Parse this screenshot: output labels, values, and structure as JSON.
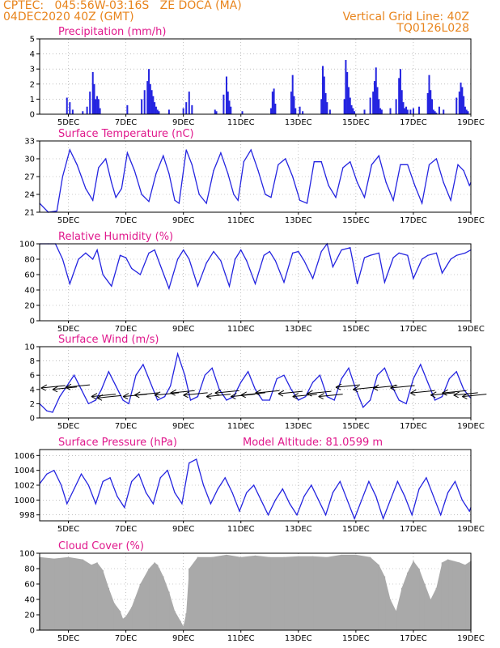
{
  "header": {
    "left_line1": "CPTEC:   045:56W-03:16S   ZE DOCA (MA)",
    "left_line2": "04DEC2020 40Z (GMT)",
    "right_line1": "Vertical Grid Line: 40Z",
    "right_line2": "TQ0126L028"
  },
  "colors": {
    "line": "#2424e0",
    "bar": "#2424e0",
    "cloud": "#a9a9a9",
    "title": "#e0188c",
    "header": "#e8841c"
  },
  "x_axis": {
    "start_day": 4,
    "end_day": 19,
    "tick_days": [
      5,
      7,
      9,
      11,
      13,
      15,
      17,
      19
    ],
    "tick_labels": [
      "5DEC",
      "7DEC",
      "9DEC",
      "11DEC",
      "13DEC",
      "15DEC",
      "17DEC",
      "19DEC"
    ]
  },
  "chart_data": [
    {
      "id": "precip",
      "type": "bar",
      "title": "Precipitation (mm/h)",
      "ylim": [
        0,
        5
      ],
      "yticks": [
        0,
        1,
        2,
        3,
        4,
        5
      ],
      "x": [
        4.95,
        5.05,
        5.15,
        5.5,
        5.65,
        5.75,
        5.85,
        5.9,
        5.95,
        6.0,
        6.05,
        6.1,
        7.05,
        7.55,
        7.65,
        7.75,
        7.8,
        7.85,
        7.9,
        7.95,
        8.0,
        8.05,
        8.1,
        8.15,
        8.5,
        9.0,
        9.1,
        9.2,
        9.3,
        10.1,
        10.15,
        10.4,
        10.5,
        10.55,
        10.6,
        10.65,
        11.05,
        12.05,
        12.1,
        12.15,
        12.2,
        12.75,
        12.8,
        12.85,
        12.9,
        13.05,
        13.15,
        13.8,
        13.85,
        13.9,
        13.95,
        14.0,
        14.1,
        14.6,
        14.65,
        14.7,
        14.75,
        14.8,
        14.85,
        14.9,
        14.95,
        15.3,
        15.5,
        15.6,
        15.65,
        15.7,
        15.75,
        15.8,
        15.85,
        15.9,
        16.2,
        16.4,
        16.5,
        16.55,
        16.6,
        16.65,
        16.7,
        16.75,
        16.8,
        16.9,
        17.0,
        17.2,
        17.5,
        17.55,
        17.6,
        17.65,
        17.7,
        17.75,
        17.8,
        17.9,
        18.05,
        18.5,
        18.6,
        18.65,
        18.7,
        18.75,
        18.8,
        18.85,
        18.9
      ],
      "values": [
        1.1,
        0.8,
        0.3,
        0.2,
        0.5,
        1.5,
        2.8,
        2.0,
        1.0,
        1.2,
        1.0,
        0.4,
        0.6,
        1.0,
        1.6,
        2.2,
        3.0,
        2.0,
        1.6,
        1.2,
        0.8,
        0.5,
        0.3,
        0.2,
        0.3,
        0.4,
        0.8,
        1.5,
        0.6,
        0.3,
        0.2,
        1.3,
        2.5,
        1.5,
        0.9,
        0.5,
        0.2,
        0.4,
        1.5,
        1.7,
        0.7,
        1.5,
        2.6,
        1.2,
        0.4,
        0.5,
        0.2,
        1.0,
        3.2,
        2.5,
        1.4,
        0.8,
        0.3,
        1.0,
        3.6,
        2.8,
        1.8,
        1.1,
        0.6,
        0.4,
        0.2,
        0.3,
        1.1,
        1.5,
        2.2,
        3.1,
        1.8,
        1.0,
        0.4,
        0.3,
        0.4,
        1.0,
        2.4,
        3.0,
        1.6,
        0.8,
        0.4,
        0.5,
        0.3,
        0.3,
        0.4,
        0.5,
        1.4,
        2.6,
        1.6,
        1.0,
        0.3,
        0.2,
        0.1,
        0.5,
        0.3,
        1.1,
        1.5,
        2.1,
        1.8,
        1.2,
        0.5,
        0.3,
        0.2
      ]
    },
    {
      "id": "temp",
      "type": "line",
      "title": "Surface Temperature (nC)",
      "ylim": [
        21,
        33
      ],
      "yticks": [
        21,
        24,
        27,
        30,
        33
      ],
      "x": [
        4.0,
        4.3,
        4.6,
        4.8,
        5.05,
        5.3,
        5.6,
        5.85,
        6.05,
        6.3,
        6.5,
        6.65,
        6.85,
        7.05,
        7.3,
        7.55,
        7.8,
        8.05,
        8.3,
        8.5,
        8.7,
        8.85,
        9.1,
        9.3,
        9.55,
        9.8,
        10.05,
        10.3,
        10.55,
        10.75,
        10.9,
        11.1,
        11.35,
        11.6,
        11.85,
        12.05,
        12.3,
        12.55,
        12.8,
        13.05,
        13.3,
        13.55,
        13.8,
        14.05,
        14.3,
        14.55,
        14.8,
        15.05,
        15.3,
        15.55,
        15.8,
        16.05,
        16.3,
        16.55,
        16.8,
        17.05,
        17.3,
        17.55,
        17.8,
        18.05,
        18.3,
        18.55,
        18.75,
        18.95,
        19.0
      ],
      "values": [
        22.5,
        21.0,
        21.2,
        27.0,
        31.5,
        29.0,
        25.0,
        23.0,
        28.5,
        30.0,
        26.0,
        23.5,
        25.0,
        31.0,
        28.0,
        24.0,
        22.8,
        27.5,
        30.5,
        27.5,
        23.0,
        22.5,
        31.5,
        29.0,
        24.0,
        22.5,
        28.0,
        31.0,
        27.5,
        24.0,
        23.0,
        29.5,
        31.5,
        28.0,
        24.0,
        23.5,
        29.0,
        30.0,
        27.0,
        23.0,
        22.5,
        29.5,
        29.5,
        25.5,
        23.5,
        28.5,
        29.5,
        26.0,
        23.5,
        29.0,
        30.5,
        26.0,
        23.0,
        29.0,
        29.0,
        25.5,
        22.5,
        29.0,
        30.0,
        26.0,
        23.0,
        29.0,
        28.0,
        25.5,
        26.0
      ]
    },
    {
      "id": "rh",
      "type": "line",
      "title": "Relative Humidity (%)",
      "ylim": [
        0,
        100
      ],
      "yticks": [
        0,
        20,
        40,
        60,
        80,
        100
      ],
      "x": [
        4.0,
        4.3,
        4.55,
        4.8,
        5.05,
        5.35,
        5.6,
        5.85,
        6.0,
        6.2,
        6.5,
        6.8,
        7.0,
        7.2,
        7.5,
        7.8,
        8.0,
        8.2,
        8.5,
        8.8,
        9.0,
        9.2,
        9.5,
        9.8,
        10.05,
        10.3,
        10.6,
        10.8,
        11.0,
        11.2,
        11.5,
        11.8,
        12.0,
        12.2,
        12.5,
        12.8,
        13.0,
        13.2,
        13.5,
        13.8,
        14.0,
        14.2,
        14.5,
        14.8,
        15.05,
        15.3,
        15.5,
        15.8,
        16.0,
        16.3,
        16.5,
        16.8,
        17.0,
        17.3,
        17.5,
        17.8,
        18.0,
        18.3,
        18.5,
        18.8,
        19.0
      ],
      "values": [
        100,
        100,
        100,
        80,
        48,
        80,
        88,
        80,
        92,
        60,
        45,
        85,
        82,
        68,
        60,
        88,
        92,
        72,
        42,
        80,
        92,
        80,
        45,
        75,
        90,
        78,
        45,
        80,
        92,
        78,
        48,
        85,
        90,
        78,
        50,
        88,
        90,
        78,
        55,
        90,
        100,
        70,
        92,
        95,
        48,
        82,
        85,
        88,
        50,
        82,
        88,
        85,
        55,
        80,
        85,
        88,
        62,
        80,
        85,
        88,
        92
      ]
    },
    {
      "id": "wind",
      "type": "line",
      "title": "Surface Wind (m/s)",
      "ylim": [
        0,
        10
      ],
      "yticks": [
        0,
        2,
        4,
        6,
        8,
        10
      ],
      "x": [
        4.0,
        4.25,
        4.45,
        4.7,
        4.95,
        5.2,
        5.45,
        5.7,
        5.95,
        6.15,
        6.4,
        6.65,
        6.9,
        7.1,
        7.35,
        7.6,
        7.85,
        8.1,
        8.35,
        8.55,
        8.8,
        9.05,
        9.25,
        9.5,
        9.75,
        10.0,
        10.25,
        10.5,
        10.75,
        11.0,
        11.25,
        11.5,
        11.75,
        12.0,
        12.25,
        12.5,
        12.75,
        13.0,
        13.25,
        13.5,
        13.75,
        14.0,
        14.25,
        14.5,
        14.75,
        15.0,
        15.25,
        15.5,
        15.75,
        16.0,
        16.25,
        16.5,
        16.75,
        17.0,
        17.25,
        17.5,
        17.75,
        18.0,
        18.25,
        18.5,
        18.75,
        18.95,
        19.0
      ],
      "values": [
        2.0,
        1.0,
        0.8,
        3.0,
        4.5,
        6.0,
        4.0,
        2.0,
        2.5,
        4.0,
        6.5,
        4.5,
        2.5,
        2.0,
        6.0,
        7.5,
        5.0,
        2.5,
        3.0,
        4.5,
        9.0,
        6.0,
        2.5,
        3.0,
        6.0,
        7.0,
        4.0,
        2.5,
        3.0,
        5.0,
        6.5,
        4.0,
        2.5,
        2.5,
        5.5,
        6.0,
        4.0,
        2.5,
        3.0,
        5.0,
        6.0,
        3.0,
        2.5,
        5.5,
        7.0,
        4.0,
        1.5,
        2.5,
        6.0,
        7.0,
        4.5,
        2.5,
        2.0,
        5.5,
        7.5,
        5.0,
        2.5,
        3.0,
        5.5,
        6.5,
        4.0,
        3.0,
        2.8
      ],
      "arrows_x": [
        4.05,
        4.45,
        4.9,
        5.8,
        6.0,
        6.9,
        7.3,
        8.0,
        8.55,
        9.0,
        9.8,
        10.1,
        10.65,
        11.0,
        11.5,
        12.3,
        12.8,
        13.3,
        13.7,
        14.3,
        14.9,
        15.6,
        16.2,
        16.9,
        17.6,
        18.0,
        18.4,
        18.7
      ],
      "arrows_y": [
        4.2,
        4.0,
        4.3,
        3.0,
        2.8,
        3.0,
        3.2,
        3.2,
        3.5,
        3.2,
        3.0,
        3.5,
        3.0,
        3.2,
        3.5,
        3.4,
        3.0,
        3.4,
        3.0,
        4.3,
        4.0,
        4.2,
        4.2,
        3.5,
        3.2,
        3.5,
        3.2,
        3.0
      ]
    },
    {
      "id": "pressure",
      "type": "line",
      "title": "Surface Pressure (hPa)",
      "subtitle": "Model Altitude: 81.0599 m",
      "ylim": [
        997.2,
        1006.8
      ],
      "yticks": [
        998,
        1000,
        1002,
        1004,
        1006
      ],
      "x": [
        4.0,
        4.25,
        4.5,
        4.75,
        4.95,
        5.2,
        5.45,
        5.7,
        5.95,
        6.2,
        6.45,
        6.7,
        6.95,
        7.2,
        7.45,
        7.7,
        7.95,
        8.2,
        8.45,
        8.7,
        8.95,
        9.2,
        9.45,
        9.7,
        9.95,
        10.2,
        10.45,
        10.7,
        10.95,
        11.2,
        11.45,
        11.7,
        11.95,
        12.2,
        12.45,
        12.7,
        12.95,
        13.2,
        13.45,
        13.7,
        13.95,
        14.2,
        14.45,
        14.7,
        14.95,
        15.2,
        15.45,
        15.7,
        15.95,
        16.2,
        16.45,
        16.7,
        16.95,
        17.2,
        17.45,
        17.7,
        17.95,
        18.2,
        18.45,
        18.7,
        18.95,
        19.0
      ],
      "values": [
        1002.2,
        1003.5,
        1004.0,
        1002.0,
        999.5,
        1001.5,
        1003.5,
        1002.0,
        999.5,
        1002.5,
        1003.0,
        1000.5,
        999.0,
        1002.5,
        1003.5,
        1001.0,
        999.5,
        1003.0,
        1004.0,
        1001.0,
        999.5,
        1005.0,
        1005.5,
        1002.0,
        999.5,
        1001.5,
        1003.0,
        1001.0,
        998.5,
        1001.0,
        1002.0,
        1000.0,
        998.0,
        1000.0,
        1001.5,
        999.5,
        998.0,
        1000.5,
        1002.0,
        1000.0,
        998.0,
        1001.0,
        1002.5,
        1000.0,
        997.5,
        1000.0,
        1002.5,
        1000.5,
        997.5,
        1000.0,
        1002.5,
        1000.5,
        998.0,
        1001.5,
        1003.0,
        1000.5,
        998.0,
        1001.0,
        1002.5,
        1000.0,
        998.5,
        999.0
      ]
    },
    {
      "id": "cloud",
      "type": "bar",
      "title": "Cloud Cover (%)",
      "ylim": [
        0,
        100
      ],
      "yticks": [
        0,
        20,
        40,
        60,
        80,
        100
      ],
      "x": [
        4.0,
        4.5,
        5.0,
        5.5,
        5.8,
        6.0,
        6.2,
        6.4,
        6.6,
        6.8,
        6.9,
        7.0,
        7.2,
        7.5,
        7.8,
        8.0,
        8.1,
        8.3,
        8.5,
        8.7,
        8.9,
        9.0,
        9.1,
        9.2,
        9.5,
        10.0,
        10.5,
        11.0,
        11.5,
        12.0,
        12.5,
        13.0,
        13.5,
        14.0,
        14.5,
        15.0,
        15.5,
        15.8,
        16.0,
        16.2,
        16.4,
        16.6,
        16.8,
        17.0,
        17.2,
        17.4,
        17.6,
        17.8,
        18.0,
        18.2,
        18.4,
        18.6,
        18.8,
        19.0
      ],
      "values": [
        95,
        93,
        95,
        92,
        85,
        88,
        78,
        55,
        35,
        25,
        15,
        18,
        30,
        60,
        80,
        88,
        85,
        70,
        50,
        25,
        12,
        5,
        22,
        80,
        95,
        95,
        98,
        95,
        97,
        95,
        95,
        96,
        96,
        95,
        98,
        98,
        95,
        85,
        70,
        40,
        25,
        55,
        75,
        90,
        80,
        60,
        40,
        55,
        88,
        92,
        90,
        88,
        85,
        90
      ]
    }
  ]
}
